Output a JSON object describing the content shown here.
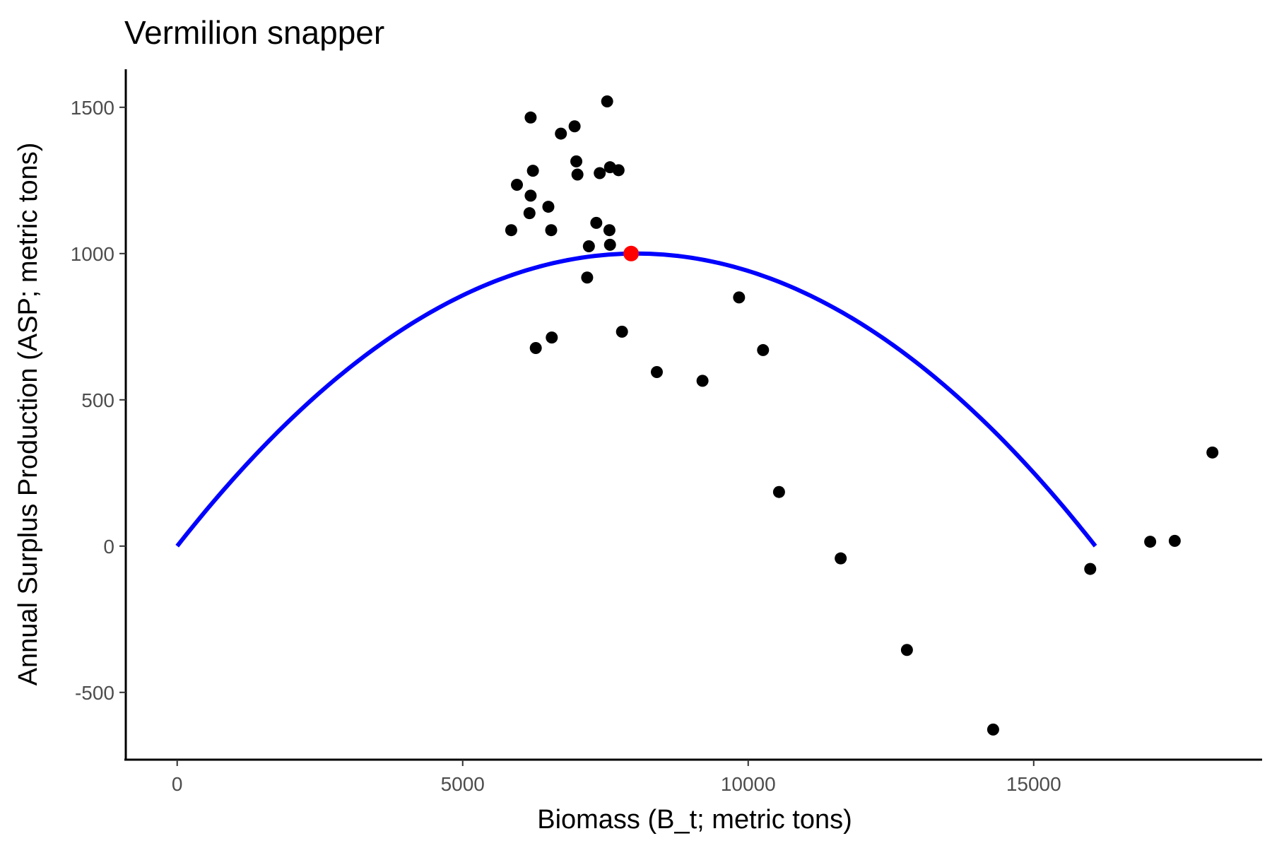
{
  "chart_data": {
    "type": "scatter",
    "title": "Vermilion snapper",
    "xlabel": "Biomass (B_t; metric tons)",
    "ylabel": "Annual Surplus Production (ASP; metric tons)",
    "xlim": [
      -900,
      19000
    ],
    "ylim": [
      -730,
      1630
    ],
    "x_ticks": [
      0,
      5000,
      10000,
      15000
    ],
    "x_tick_labels": [
      "0",
      "5000",
      "10000",
      "15000"
    ],
    "y_ticks": [
      -500,
      0,
      500,
      1000,
      1500
    ],
    "y_tick_labels": [
      "-500",
      "0",
      "500",
      "1000",
      "1500"
    ],
    "grid": false,
    "legend": "none",
    "series": [
      {
        "kind": "points",
        "color": "#000000",
        "points": [
          [
            7530,
            1520
          ],
          [
            6190,
            1465
          ],
          [
            6960,
            1435
          ],
          [
            6720,
            1410
          ],
          [
            6990,
            1315
          ],
          [
            7580,
            1295
          ],
          [
            7730,
            1285
          ],
          [
            6230,
            1283
          ],
          [
            7400,
            1275
          ],
          [
            7010,
            1270
          ],
          [
            5950,
            1235
          ],
          [
            6190,
            1198
          ],
          [
            6500,
            1160
          ],
          [
            6170,
            1138
          ],
          [
            7340,
            1105
          ],
          [
            5850,
            1080
          ],
          [
            6550,
            1080
          ],
          [
            7570,
            1080
          ],
          [
            7580,
            1030
          ],
          [
            7210,
            1025
          ],
          [
            7180,
            918
          ],
          [
            9840,
            850
          ],
          [
            7790,
            733
          ],
          [
            6560,
            713
          ],
          [
            6280,
            677
          ],
          [
            10260,
            670
          ],
          [
            8400,
            595
          ],
          [
            9200,
            565
          ],
          [
            10540,
            185
          ],
          [
            11620,
            -42
          ],
          [
            15990,
            -78
          ],
          [
            12780,
            -355
          ],
          [
            14290,
            -627
          ],
          [
            17040,
            15
          ],
          [
            17470,
            18
          ],
          [
            18130,
            320
          ]
        ]
      },
      {
        "kind": "curve",
        "color": "#0000ff",
        "shape": "parabola",
        "x_start": 0,
        "x_end": 16080,
        "peak_x": 8040,
        "peak_y": 1000
      },
      {
        "kind": "highlight-point",
        "color": "#ff0000",
        "points": [
          [
            7950,
            1000
          ]
        ]
      }
    ]
  }
}
